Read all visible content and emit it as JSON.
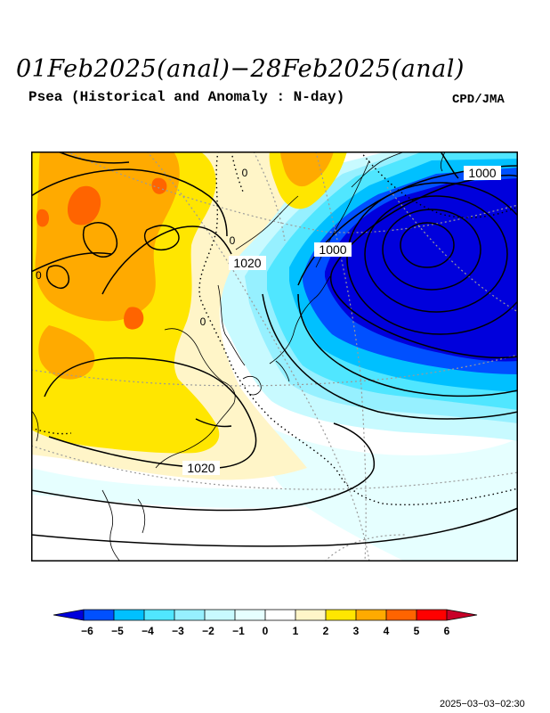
{
  "header": {
    "title": "01Feb2025(anal)−28Feb2025(anal)",
    "subtitle": "Psea (Historical and Anomaly : N-day)",
    "credit": "CPD/JMA"
  },
  "map": {
    "contour_labels": {
      "low_outer": "1000",
      "low_inner": "1000",
      "high_mid": "1020",
      "high_south": "1020",
      "zero_a": "0",
      "zero_b": "0",
      "zero_c": "0",
      "zero_d": "0"
    },
    "anomaly_colors": {
      "m6": "#0000dc",
      "m5": "#0050ff",
      "m4": "#00c0ff",
      "m3": "#50e6ff",
      "m2": "#96f0ff",
      "m1": "#c8faff",
      "m0": "#e6ffff",
      "p0": "#ffffff",
      "p1": "#fff5c8",
      "p2": "#ffe600",
      "p3": "#ffaa00",
      "p4": "#ff6400",
      "p5": "#ff0000",
      "p6": "#c80028"
    }
  },
  "legend": {
    "ticks": [
      "−6",
      "−5",
      "−4",
      "−3",
      "−2",
      "−1",
      "0",
      "1",
      "2",
      "3",
      "4",
      "5",
      "6"
    ]
  },
  "footer": {
    "timestamp": "2025−03−03−02:30"
  }
}
